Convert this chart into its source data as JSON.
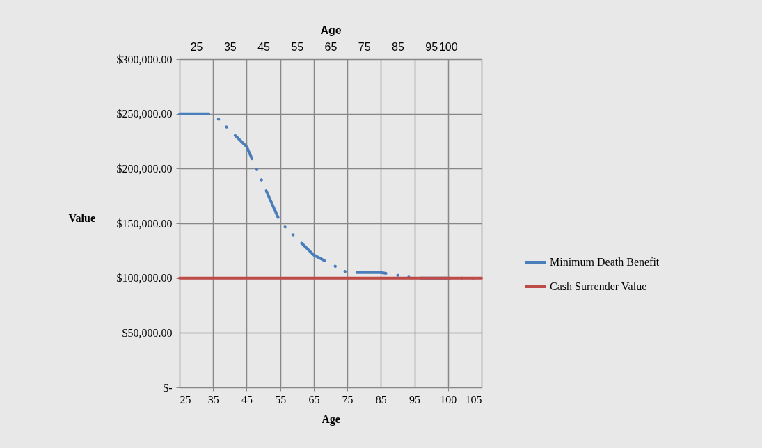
{
  "chart_data": {
    "type": "line",
    "xlabel": "Age",
    "x2label": "Age",
    "ylabel": "Value",
    "categories": [
      "25",
      "35",
      "45",
      "55",
      "65",
      "75",
      "85",
      "95",
      "100",
      "105"
    ],
    "series": [
      {
        "name": "Minimum Death Benefit",
        "color": "#4a7ebb",
        "line_style": "dashed",
        "values": [
          250000,
          250000,
          220000,
          151000,
          121000,
          105000,
          105000,
          100000,
          100000,
          100000
        ]
      },
      {
        "name": "Cash Surrender Value",
        "color": "#be4b48",
        "line_style": "solid",
        "values": [
          100000,
          100000,
          100000,
          100000,
          100000,
          100000,
          100000,
          100000,
          100000,
          100000
        ]
      }
    ],
    "ylim": [
      0,
      300000
    ],
    "yticks": [
      {
        "value": 0,
        "label": "$-"
      },
      {
        "value": 50000,
        "label": "$50,000.00"
      },
      {
        "value": 100000,
        "label": "$100,000.00"
      },
      {
        "value": 150000,
        "label": "$150,000.00"
      },
      {
        "value": 200000,
        "label": "$200,000.00"
      },
      {
        "value": 250000,
        "label": "$250,000.00"
      },
      {
        "value": 300000,
        "label": "$300,000.00"
      }
    ],
    "x2lim": [
      20,
      110
    ],
    "x2ticks": [
      25,
      35,
      45,
      55,
      65,
      75,
      85,
      95,
      100
    ],
    "grid": true,
    "legend": "right",
    "marker": "none"
  }
}
